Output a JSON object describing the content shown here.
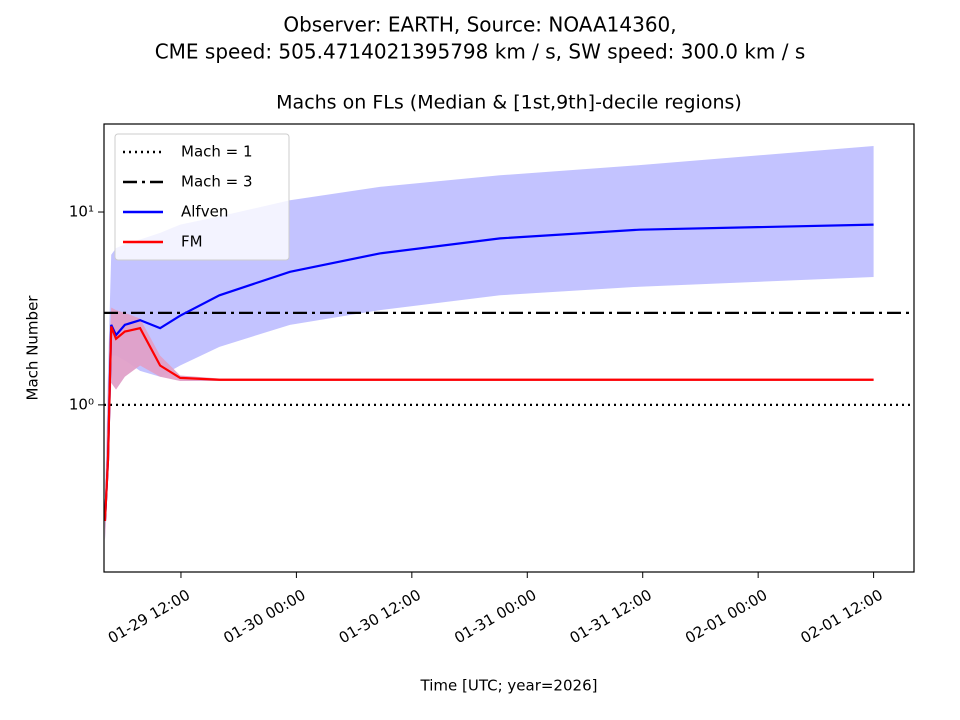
{
  "chart_data": {
    "type": "line",
    "suptitle": [
      "Observer: EARTH, Source: NOAA14360,",
      "CME speed: 505.4714021395798 km / s, SW speed: 300.0 km / s"
    ],
    "title": "Machs on FLs (Median & [1st,9th]-decile regions)",
    "xlabel": "Time [UTC; year=2026]",
    "ylabel": "Mach Number",
    "x": [
      "01-29 04:06",
      "01-29 04:25",
      "01-29 04:45",
      "01-29 05:15",
      "01-29 06:10",
      "01-29 07:45",
      "01-29 09:50",
      "01-29 11:55",
      "01-29 16:00",
      "01-29 23:20",
      "01-30 08:40",
      "01-30 21:10",
      "01-31 11:40",
      "02-01 12:00"
    ],
    "xlim": [
      "01-29 04:00",
      "02-01 16:12"
    ],
    "xticks": [
      "01-29 12:00",
      "01-30 00:00",
      "01-30 12:00",
      "01-31 00:00",
      "01-31 12:00",
      "02-01 00:00",
      "02-01 12:00"
    ],
    "ylim": [
      0.136,
      28.6
    ],
    "yscale": "log",
    "yticks": [
      {
        "value": 1,
        "label": "10⁰"
      },
      {
        "value": 10,
        "label": "10¹"
      }
    ],
    "legend": "upper left",
    "reference_lines": [
      {
        "name": "Mach = 1",
        "value": 1,
        "style": "dotted",
        "color": "#000000"
      },
      {
        "name": "Mach = 3",
        "value": 3,
        "style": "dashdot",
        "color": "#000000"
      }
    ],
    "series": [
      {
        "name": "Alfven",
        "color": "#0000ff",
        "band_color": "#c0c0ff",
        "values": [
          0.25,
          0.52,
          2.6,
          2.3,
          2.6,
          2.75,
          2.5,
          2.9,
          3.7,
          4.9,
          6.1,
          7.3,
          8.1,
          8.6
        ],
        "lower": [
          0.2,
          0.4,
          1.8,
          1.8,
          1.7,
          1.5,
          1.4,
          1.6,
          2.0,
          2.6,
          3.1,
          3.7,
          4.1,
          4.6
        ],
        "upper": [
          0.3,
          1.5,
          6,
          6.5,
          6.8,
          7.2,
          7.8,
          8.6,
          9.5,
          11.5,
          13.5,
          15.5,
          17.5,
          22
        ]
      },
      {
        "name": "FM",
        "color": "#ff0000",
        "band_color": "#e0a0c8",
        "values": [
          0.25,
          0.52,
          2.55,
          2.2,
          2.4,
          2.5,
          1.6,
          1.38,
          1.35,
          1.35,
          1.35,
          1.35,
          1.35,
          1.35
        ],
        "lower": [
          0.2,
          0.4,
          1.3,
          1.2,
          1.4,
          1.6,
          1.4,
          1.33,
          1.33,
          1.33,
          1.33,
          1.33,
          1.33,
          1.33
        ],
        "upper": [
          0.3,
          1.2,
          3.2,
          3.1,
          3.0,
          2.8,
          1.8,
          1.42,
          1.37,
          1.37,
          1.37,
          1.37,
          1.37,
          1.37
        ]
      }
    ]
  }
}
